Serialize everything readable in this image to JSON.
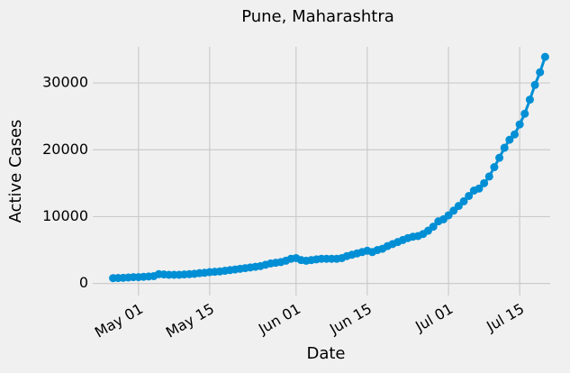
{
  "chart_data": {
    "type": "line",
    "title": "Pune, Maharashtra",
    "x_label": "Date",
    "y_label": "Active Cases",
    "x": [
      "04-26",
      "04-27",
      "04-28",
      "04-29",
      "04-30",
      "05-01",
      "05-02",
      "05-03",
      "05-04",
      "05-05",
      "05-06",
      "05-07",
      "05-08",
      "05-09",
      "05-10",
      "05-11",
      "05-12",
      "05-13",
      "05-14",
      "05-15",
      "05-16",
      "05-17",
      "05-18",
      "05-19",
      "05-20",
      "05-21",
      "05-22",
      "05-23",
      "05-24",
      "05-25",
      "05-26",
      "05-27",
      "05-28",
      "05-29",
      "05-30",
      "05-31",
      "06-01",
      "06-02",
      "06-03",
      "06-04",
      "06-05",
      "06-06",
      "06-07",
      "06-08",
      "06-09",
      "06-10",
      "06-11",
      "06-12",
      "06-13",
      "06-14",
      "06-15",
      "06-16",
      "06-17",
      "06-18",
      "06-19",
      "06-20",
      "06-21",
      "06-22",
      "06-23",
      "06-24",
      "06-25",
      "06-26",
      "06-27",
      "06-28",
      "06-29",
      "06-30",
      "07-01",
      "07-02",
      "07-03",
      "07-04",
      "07-05",
      "07-06",
      "07-07",
      "07-08",
      "07-09",
      "07-10",
      "07-11",
      "07-12",
      "07-13",
      "07-14",
      "07-15",
      "07-16",
      "07-17",
      "07-18",
      "07-19",
      "07-20"
    ],
    "series": [
      {
        "name": "Active Cases",
        "color": "#008fd5",
        "values": [
          800,
          820,
          850,
          900,
          950,
          950,
          1000,
          1050,
          1100,
          1400,
          1350,
          1300,
          1300,
          1300,
          1350,
          1400,
          1450,
          1550,
          1600,
          1700,
          1750,
          1800,
          1900,
          2000,
          2100,
          2200,
          2300,
          2400,
          2500,
          2600,
          2800,
          3000,
          3100,
          3200,
          3400,
          3700,
          3800,
          3500,
          3400,
          3500,
          3600,
          3700,
          3700,
          3700,
          3700,
          3800,
          4100,
          4300,
          4500,
          4700,
          4900,
          4700,
          5000,
          5200,
          5600,
          5900,
          6200,
          6500,
          6800,
          7000,
          7100,
          7400,
          7900,
          8500,
          9300,
          9600,
          10200,
          10900,
          11600,
          12300,
          13100,
          13900,
          14200,
          15000,
          16000,
          17400,
          18800,
          20300,
          21500,
          22300,
          23800,
          25400,
          27500,
          29700,
          31600,
          33900
        ]
      }
    ],
    "xlim": [
      "04-22",
      "07-21"
    ],
    "xticks": [
      {
        "value": "05-01",
        "label": "May 01"
      },
      {
        "value": "05-15",
        "label": "May 15"
      },
      {
        "value": "06-01",
        "label": "Jun 01"
      },
      {
        "value": "06-15",
        "label": "Jun 15"
      },
      {
        "value": "07-01",
        "label": "Jul 01"
      },
      {
        "value": "07-15",
        "label": "Jul 15"
      }
    ],
    "ylim": [
      -1800,
      35400
    ],
    "yticks": [
      0,
      10000,
      20000,
      30000
    ],
    "grid": true
  }
}
